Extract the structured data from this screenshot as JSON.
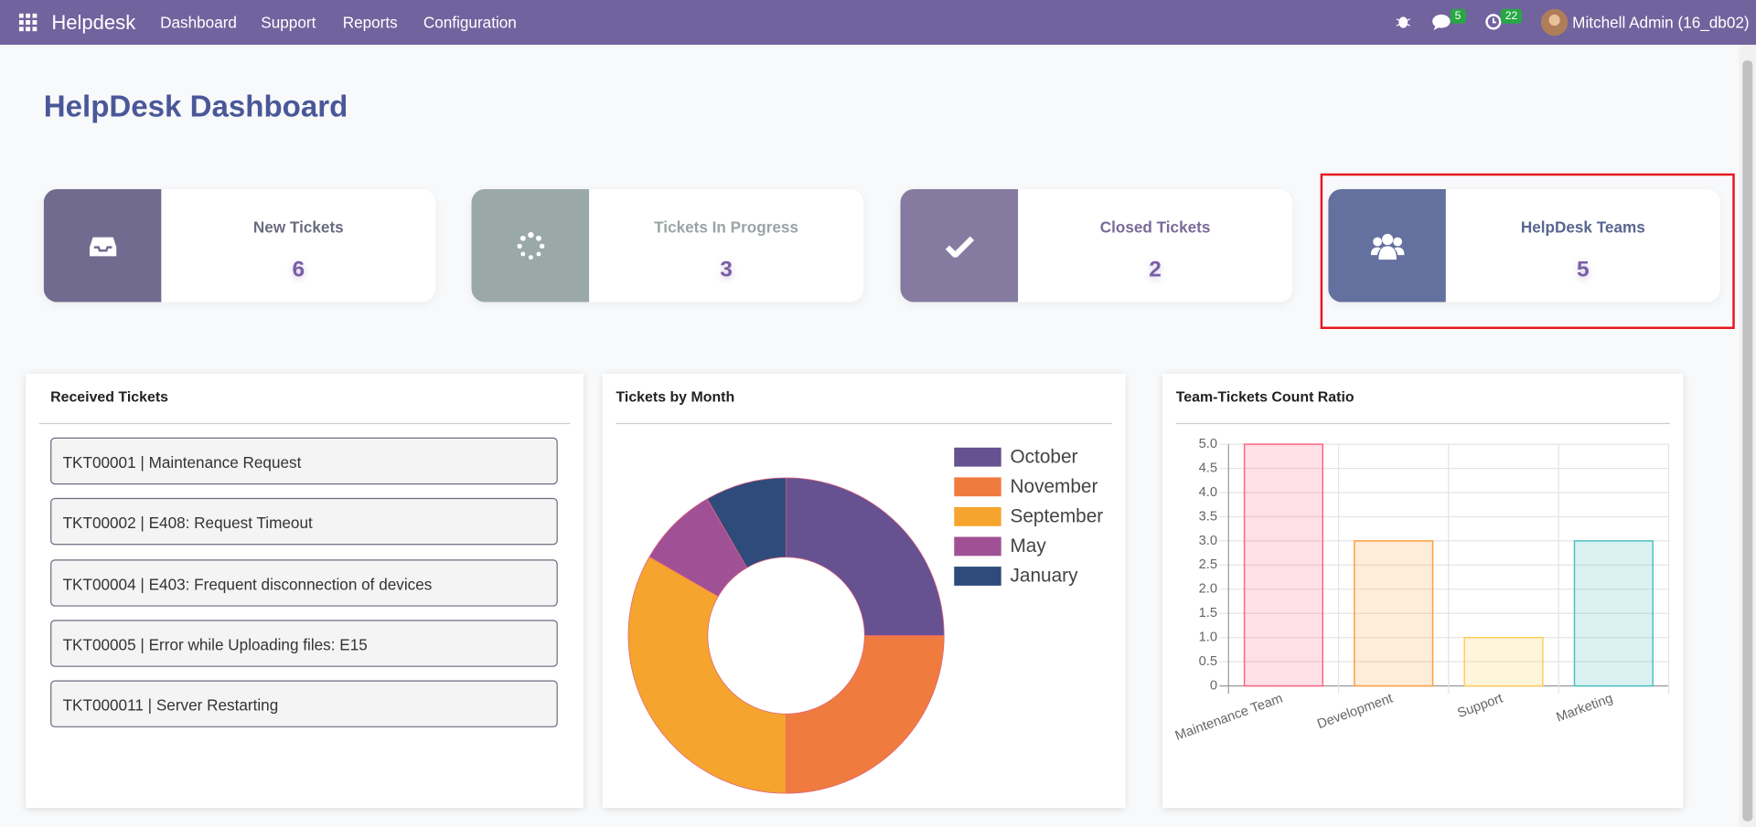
{
  "navbar": {
    "app": "Helpdesk",
    "menu": [
      "Dashboard",
      "Support",
      "Reports",
      "Configuration"
    ],
    "messages_badge": 5,
    "activities_badge": 22,
    "user": "Mitchell Admin (16_db02)"
  },
  "header": {
    "title": "HelpDesk Dashboard"
  },
  "cards": [
    {
      "label": "New Tickets",
      "value": 6
    },
    {
      "label": "Tickets In Progress",
      "value": 3
    },
    {
      "label": "Closed Tickets",
      "value": 2
    },
    {
      "label": "HelpDesk Teams",
      "value": 5
    }
  ],
  "received_tickets": {
    "title": "Received Tickets",
    "items": [
      "TKT00001 | Maintenance Request",
      "TKT00002 | E408: Request Timeout",
      "TKT00004 | E403: Frequent disconnection of devices",
      "TKT00005 | Error while Uploading files: E15",
      "TKT000011 | Server Restarting"
    ]
  },
  "chart_data": [
    {
      "type": "doughnut",
      "title": "Tickets by Month",
      "categories": [
        "October",
        "November",
        "September",
        "May",
        "January"
      ],
      "values": [
        3,
        3,
        4,
        1,
        1
      ],
      "colors": [
        "#665191",
        "#f07b3f",
        "#f5a42e",
        "#a05195",
        "#2f4b7c"
      ],
      "legend": "right"
    },
    {
      "type": "bar",
      "title": "Team-Tickets Count Ratio",
      "categories": [
        "Maintenance Team",
        "Development",
        "Support",
        "Marketing"
      ],
      "values": [
        5,
        3,
        1,
        3
      ],
      "colors": [
        "#ff6384",
        "#ff9f40",
        "#ffcd56",
        "#4bc0c0"
      ],
      "ylim": [
        0,
        5
      ],
      "yticks": [
        0,
        0.5,
        {
          "value": 1,
          "label": "1.0"
        },
        1.5,
        {
          "value": 2,
          "label": "2.0"
        },
        2.5,
        {
          "value": 3,
          "label": "3.0"
        },
        3.5,
        {
          "value": 4,
          "label": "4.0"
        },
        4.5,
        {
          "value": 5,
          "label": "5.0"
        }
      ],
      "grid": true
    }
  ]
}
